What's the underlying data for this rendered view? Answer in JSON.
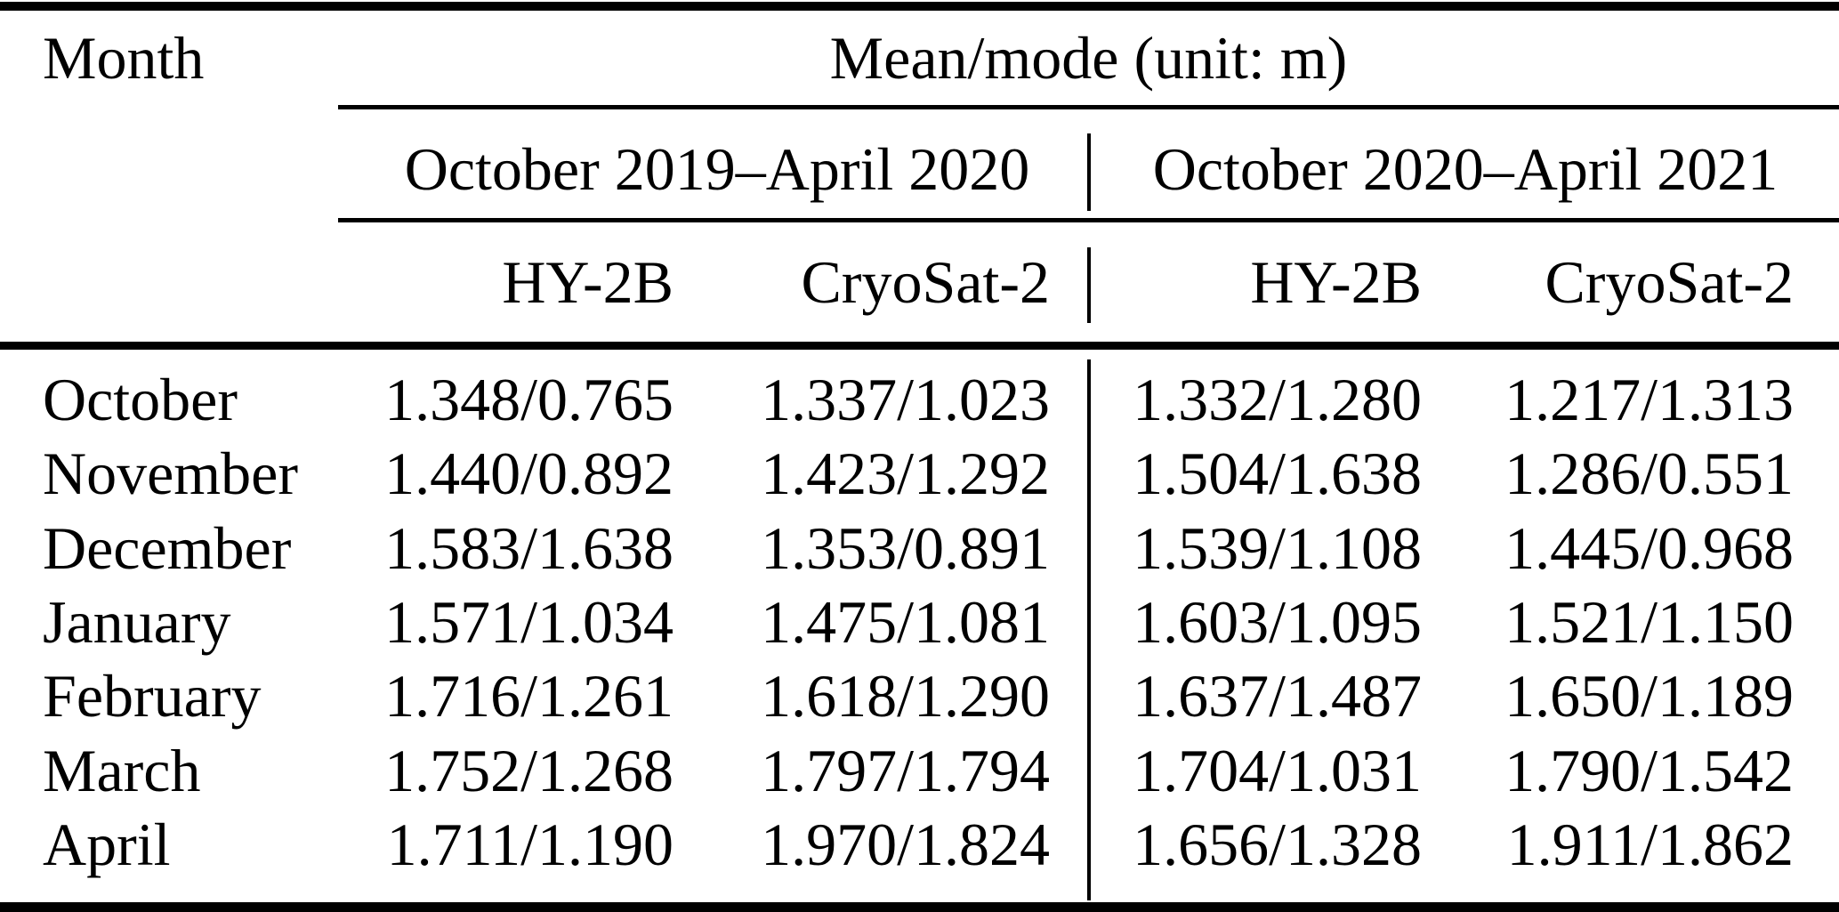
{
  "page": {
    "background_color": "#ffffff",
    "text_color": "#000000",
    "rule_color": "#000000"
  },
  "table": {
    "header": {
      "month": "Month",
      "mean_mode": "Mean/mode (unit: m)",
      "periods": {
        "p1": "October 2019–April 2020",
        "p2": "October 2020–April 2021"
      },
      "satellites": {
        "p1_hy2b": "HY-2B",
        "p1_cryosat2": "CryoSat-2",
        "p2_hy2b": "HY-2B",
        "p2_cryosat2": "CryoSat-2"
      }
    },
    "rows": [
      {
        "month": "October",
        "p1_hy2b": "1.348/0.765",
        "p1_cryosat2": "1.337/1.023",
        "p2_hy2b": "1.332/1.280",
        "p2_cryosat2": "1.217/1.313"
      },
      {
        "month": "November",
        "p1_hy2b": "1.440/0.892",
        "p1_cryosat2": "1.423/1.292",
        "p2_hy2b": "1.504/1.638",
        "p2_cryosat2": "1.286/0.551"
      },
      {
        "month": "December",
        "p1_hy2b": "1.583/1.638",
        "p1_cryosat2": "1.353/0.891",
        "p2_hy2b": "1.539/1.108",
        "p2_cryosat2": "1.445/0.968"
      },
      {
        "month": "January",
        "p1_hy2b": "1.571/1.034",
        "p1_cryosat2": "1.475/1.081",
        "p2_hy2b": "1.603/1.095",
        "p2_cryosat2": "1.521/1.150"
      },
      {
        "month": "February",
        "p1_hy2b": "1.716/1.261",
        "p1_cryosat2": "1.618/1.290",
        "p2_hy2b": "1.637/1.487",
        "p2_cryosat2": "1.650/1.189"
      },
      {
        "month": "March",
        "p1_hy2b": "1.752/1.268",
        "p1_cryosat2": "1.797/1.794",
        "p2_hy2b": "1.704/1.031",
        "p2_cryosat2": "1.790/1.542"
      },
      {
        "month": "April",
        "p1_hy2b": "1.711/1.190",
        "p1_cryosat2": "1.970/1.824",
        "p2_hy2b": "1.656/1.328",
        "p2_cryosat2": "1.911/1.862"
      }
    ]
  }
}
